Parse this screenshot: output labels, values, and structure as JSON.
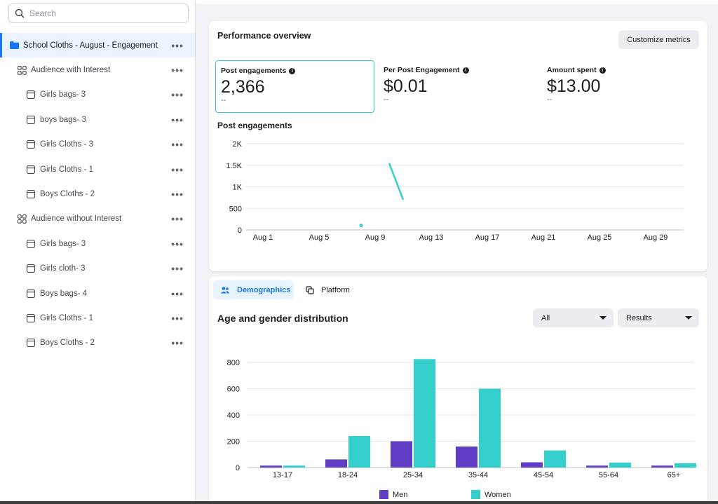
{
  "sidebar": {
    "search_placeholder": "Search",
    "items": [
      {
        "label": "School Cloths - August - Engagement",
        "level": 0,
        "icon": "folder-icon",
        "selected": true
      },
      {
        "label": "Audience with Interest",
        "level": 1,
        "icon": "grid-icon"
      },
      {
        "label": "Girls bags- 3",
        "level": 2,
        "icon": "ad-icon"
      },
      {
        "label": "boys bags- 3",
        "level": 2,
        "icon": "ad-icon"
      },
      {
        "label": "Girls Cloths - 3",
        "level": 2,
        "icon": "ad-icon"
      },
      {
        "label": "Girls Cloths - 1",
        "level": 2,
        "icon": "ad-icon"
      },
      {
        "label": "Boys Cloths - 2",
        "level": 2,
        "icon": "ad-icon"
      },
      {
        "label": "Audience without Interest",
        "level": 1,
        "icon": "grid-icon"
      },
      {
        "label": "Girls bags- 3",
        "level": 2,
        "icon": "ad-icon"
      },
      {
        "label": "Girls cloth- 3",
        "level": 2,
        "icon": "ad-icon"
      },
      {
        "label": "Boys bags- 4",
        "level": 2,
        "icon": "ad-icon"
      },
      {
        "label": "Girls Cloths - 1",
        "level": 2,
        "icon": "ad-icon"
      },
      {
        "label": "Boys Cloths - 2",
        "level": 2,
        "icon": "ad-icon"
      }
    ],
    "more_glyph": "•••"
  },
  "performance": {
    "title": "Performance overview",
    "customize_label": "Customize metrics",
    "metrics": [
      {
        "label": "Post engagements",
        "value": "2,366",
        "delta": "--",
        "active": true
      },
      {
        "label": "Per Post Engagement",
        "value": "$0.01",
        "delta": "--"
      },
      {
        "label": "Amount spent",
        "value": "$13.00",
        "delta": "--"
      }
    ],
    "chart_title": "Post engagements"
  },
  "demographics": {
    "tabs": [
      {
        "label": "Demographics",
        "icon": "people-icon",
        "active": true
      },
      {
        "label": "Platform",
        "icon": "platform-icon"
      }
    ],
    "title": "Age and gender distribution",
    "filter_all": "All",
    "filter_results": "Results"
  },
  "colors": {
    "accent": "#1877f2",
    "teal": "#34cecd",
    "purple": "#5f3dc4"
  },
  "chart_data": [
    {
      "type": "line",
      "title": "Post engagements",
      "y_ticks": [
        "0",
        "500",
        "1K",
        "1.5K",
        "2K"
      ],
      "ylim": [
        0,
        2000
      ],
      "x_ticks": [
        "Aug 1",
        "Aug 5",
        "Aug 9",
        "Aug 13",
        "Aug 17",
        "Aug 21",
        "Aug 25",
        "Aug 29"
      ],
      "series": [
        {
          "points": [
            {
              "x": "Aug 8",
              "y": 100
            }
          ]
        },
        {
          "points": [
            {
              "x": "Aug 10",
              "y": 1550
            },
            {
              "x": "Aug 11",
              "y": 700
            }
          ]
        }
      ],
      "grid": true
    },
    {
      "type": "bar",
      "title": "Age and gender distribution",
      "categories": [
        "13-17",
        "18-24",
        "25-34",
        "35-44",
        "45-54",
        "55-64",
        "65+"
      ],
      "series": [
        {
          "name": "Men",
          "color": "#5f3dc4",
          "values": [
            15,
            62,
            200,
            160,
            40,
            15,
            15
          ]
        },
        {
          "name": "Women",
          "color": "#34cecd",
          "values": [
            15,
            240,
            825,
            600,
            130,
            38,
            33
          ]
        }
      ],
      "y_ticks": [
        "0",
        "200",
        "400",
        "600",
        "800"
      ],
      "ylim": [
        0,
        830
      ],
      "grid": true,
      "legend": "bottom"
    }
  ]
}
